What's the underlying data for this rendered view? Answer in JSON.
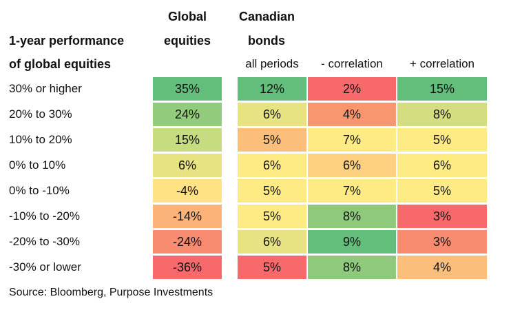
{
  "chart_data": {
    "type": "table",
    "title": "",
    "header": {
      "row_label_title_line1": "1-year performance",
      "row_label_title_line2": "of global equities",
      "global_line1": "Global",
      "global_line2": "equities",
      "canadian_line1": "Canadian",
      "canadian_line2": "bonds",
      "sub_all": "all periods",
      "sub_neg": "- correlation",
      "sub_pos": "+ correlation"
    },
    "columns": [
      "Global equities",
      "Canadian bonds: all periods",
      "Canadian bonds: - correlation",
      "Canadian bonds: + correlation"
    ],
    "rows": [
      {
        "label": "30% or higher",
        "values": [
          "35%",
          "12%",
          "2%",
          "15%"
        ],
        "colors": [
          "#63be7b",
          "#63be7b",
          "#f8696b",
          "#63be7b"
        ]
      },
      {
        "label": "20% to 30%",
        "values": [
          "24%",
          "6%",
          "4%",
          "8%"
        ],
        "colors": [
          "#92cb7b",
          "#e8e382",
          "#f8966f",
          "#d4de81"
        ]
      },
      {
        "label": "10% to 20%",
        "values": [
          "15%",
          "5%",
          "7%",
          "5%"
        ],
        "colors": [
          "#c7db80",
          "#fcbf7b",
          "#ffeb84",
          "#ffeb84"
        ]
      },
      {
        "label": "0% to 10%",
        "values": [
          "6%",
          "6%",
          "6%",
          "6%"
        ],
        "colors": [
          "#e8e382",
          "#ffeb84",
          "#fdd17f",
          "#ffeb84"
        ]
      },
      {
        "label": "0% to -10%",
        "values": [
          "-4%",
          "5%",
          "7%",
          "5%"
        ],
        "colors": [
          "#ffe283",
          "#ffeb84",
          "#ffeb84",
          "#ffeb84"
        ]
      },
      {
        "label": "-10% to -20%",
        "values": [
          "-14%",
          "5%",
          "8%",
          "3%"
        ],
        "colors": [
          "#fcb37a",
          "#ffeb84",
          "#8fca7c",
          "#f8696b"
        ]
      },
      {
        "label": "-20% to -30%",
        "values": [
          "-24%",
          "6%",
          "9%",
          "3%"
        ],
        "colors": [
          "#f98b70",
          "#e8e382",
          "#63be7b",
          "#f98b70"
        ]
      },
      {
        "label": "-30% or lower",
        "values": [
          "-36%",
          "5%",
          "8%",
          "4%"
        ],
        "colors": [
          "#f8696b",
          "#f8696b",
          "#8fca7c",
          "#fcbf7b"
        ]
      }
    ],
    "source": "Source: Bloomberg, Purpose Investments"
  }
}
